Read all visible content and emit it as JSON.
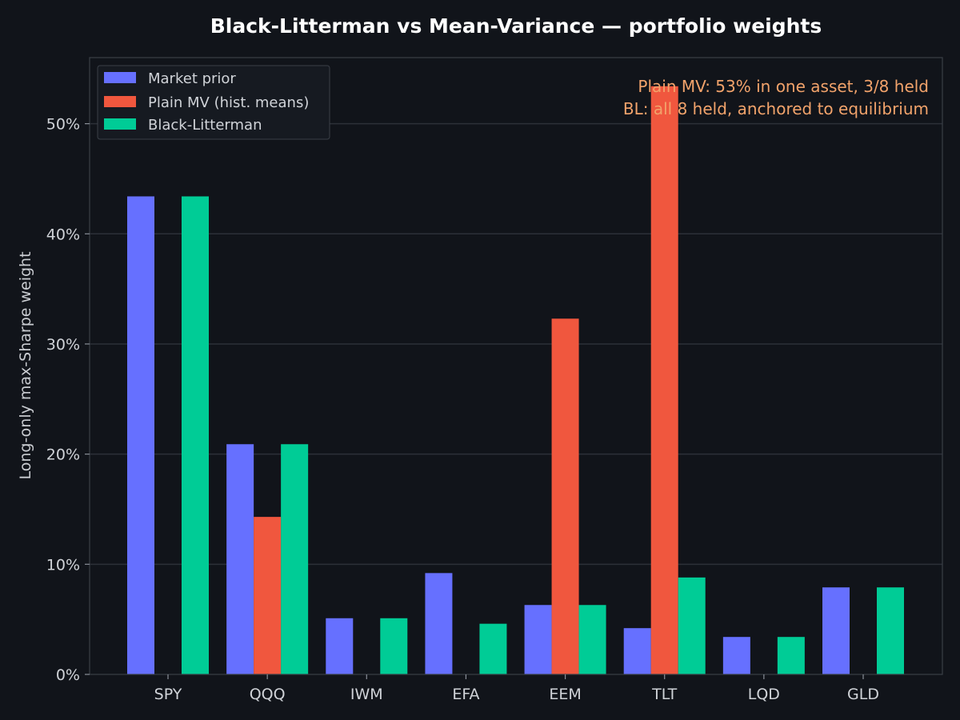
{
  "chart_data": {
    "type": "bar",
    "title": "Black-Litterman vs Mean-Variance — portfolio weights",
    "ylabel": "Long-only max-Sharpe weight",
    "xlabel": "",
    "categories": [
      "SPY",
      "QQQ",
      "IWM",
      "EFA",
      "EEM",
      "TLT",
      "LQD",
      "GLD"
    ],
    "ylim": [
      0,
      56
    ],
    "yticks": [
      0,
      10,
      20,
      30,
      40,
      50
    ],
    "ytick_labels": [
      "0%",
      "10%",
      "20%",
      "30%",
      "40%",
      "50%"
    ],
    "grid": true,
    "legend_position": "top-left",
    "series": [
      {
        "name": "Market prior",
        "color": "#6670ff",
        "values": [
          43.4,
          20.9,
          5.1,
          9.2,
          6.3,
          4.2,
          3.4,
          7.9
        ]
      },
      {
        "name": "Plain MV (hist. means)",
        "color": "#f0573e",
        "values": [
          0,
          14.3,
          0,
          0,
          32.3,
          53.4,
          0,
          0
        ]
      },
      {
        "name": "Black-Litterman",
        "color": "#00cc96",
        "values": [
          43.4,
          20.9,
          5.1,
          4.6,
          6.3,
          8.8,
          3.4,
          7.9
        ]
      }
    ],
    "annotations": {
      "color": "#f2a36b",
      "lines": [
        "Plain MV: 53% in one asset, 3/8 held",
        "BL: all 8 held, anchored to equilibrium"
      ]
    }
  },
  "colors": {
    "background": "#11141a",
    "grid": "#2c3038",
    "axis": "#3a3f47"
  }
}
